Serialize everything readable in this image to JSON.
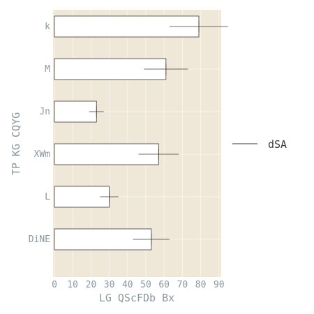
{
  "chart_data": {
    "type": "bar",
    "orientation": "horizontal",
    "title": "",
    "categories": [
      "k",
      "M",
      "Jn",
      "XWm",
      "L",
      "DiNE"
    ],
    "series": [
      {
        "name": "dSA",
        "values": [
          79,
          61,
          23,
          57,
          30,
          53
        ],
        "errors": [
          16,
          12,
          4,
          11,
          5,
          10
        ]
      }
    ],
    "xlabel": "LG QScFDb Bx",
    "ylabel": "TP KG CQYG",
    "xlim": [
      0,
      92
    ],
    "xticks": [
      0,
      10,
      20,
      30,
      40,
      50,
      60,
      70,
      80,
      90
    ],
    "grid": true,
    "legend_position": "right",
    "colors": {
      "plot_background": "#efe8d8",
      "bar_fill": "#ffffff",
      "bar_edge": "#3a3a3a",
      "grid": "#f8f4ea",
      "text": "#8a98a0"
    }
  }
}
